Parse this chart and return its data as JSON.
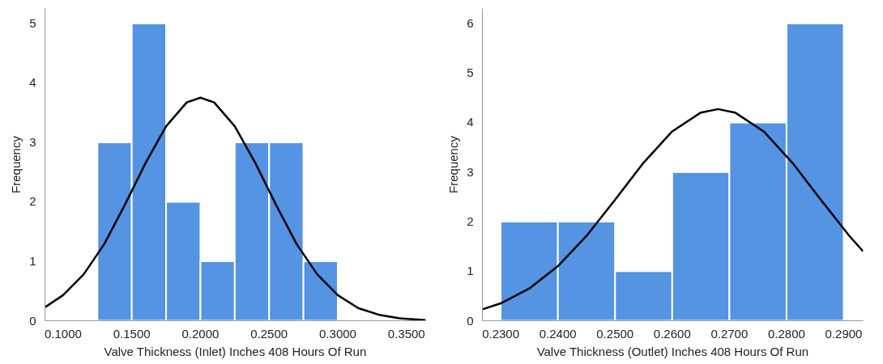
{
  "chart_data": [
    {
      "type": "histogram",
      "xlabel": "Valve Thickness (Inlet) Inches 408 Hours Of Run",
      "ylabel": "Frequency",
      "grid": false,
      "xlim": [
        0.0868,
        0.364
      ],
      "ylim": [
        0,
        5.25
      ],
      "xticks": [
        {
          "value": 0.1,
          "label": "0.1000"
        },
        {
          "value": 0.15,
          "label": "0.1500"
        },
        {
          "value": 0.2,
          "label": "0.2000"
        },
        {
          "value": 0.25,
          "label": "0.2500"
        },
        {
          "value": 0.3,
          "label": "0.3000"
        },
        {
          "value": 0.35,
          "label": "0.3500"
        }
      ],
      "yticks": [
        0,
        1,
        2,
        3,
        4,
        5
      ],
      "series": [
        {
          "color": "#5593e3",
          "bins": [
            0.125,
            0.15,
            0.175,
            0.2,
            0.225,
            0.25,
            0.275,
            0.3
          ],
          "values": [
            3,
            5,
            2,
            1,
            3,
            3,
            1
          ]
        },
        {
          "type": "line",
          "color": "#000000",
          "x": [
            0.087,
            0.1,
            0.115,
            0.13,
            0.145,
            0.16,
            0.175,
            0.19,
            0.2,
            0.21,
            0.225,
            0.24,
            0.255,
            0.27,
            0.285,
            0.3,
            0.315,
            0.33,
            0.345,
            0.364
          ],
          "values": [
            0.23,
            0.43,
            0.78,
            1.29,
            1.95,
            2.65,
            3.27,
            3.67,
            3.75,
            3.67,
            3.27,
            2.65,
            1.95,
            1.29,
            0.78,
            0.43,
            0.21,
            0.1,
            0.04,
            0.01
          ]
        }
      ]
    },
    {
      "type": "histogram",
      "xlabel": "Valve Thickness (Outlet) Inches 408 Hours Of Run",
      "ylabel": "Frequency",
      "grid": false,
      "xlim": [
        0.2268,
        0.2934
      ],
      "ylim": [
        0,
        6.3
      ],
      "xticks": [
        {
          "value": 0.23,
          "label": "0.2300"
        },
        {
          "value": 0.24,
          "label": "0.2400"
        },
        {
          "value": 0.25,
          "label": "0.2500"
        },
        {
          "value": 0.26,
          "label": "0.2600"
        },
        {
          "value": 0.27,
          "label": "0.2700"
        },
        {
          "value": 0.28,
          "label": "0.2800"
        },
        {
          "value": 0.29,
          "label": "0.2900"
        }
      ],
      "yticks": [
        0,
        1,
        2,
        3,
        4,
        5,
        6
      ],
      "series": [
        {
          "color": "#5593e3",
          "bins": [
            0.23,
            0.24,
            0.25,
            0.26,
            0.27,
            0.28,
            0.29
          ],
          "values": [
            2,
            2,
            1,
            3,
            4,
            6
          ]
        },
        {
          "type": "line",
          "color": "#000000",
          "x": [
            0.2268,
            0.23,
            0.235,
            0.24,
            0.245,
            0.25,
            0.255,
            0.26,
            0.265,
            0.268,
            0.271,
            0.276,
            0.281,
            0.286,
            0.291,
            0.2934
          ],
          "values": [
            0.23,
            0.35,
            0.65,
            1.1,
            1.71,
            2.44,
            3.19,
            3.82,
            4.2,
            4.27,
            4.2,
            3.82,
            3.19,
            2.44,
            1.71,
            1.4
          ]
        }
      ]
    }
  ]
}
